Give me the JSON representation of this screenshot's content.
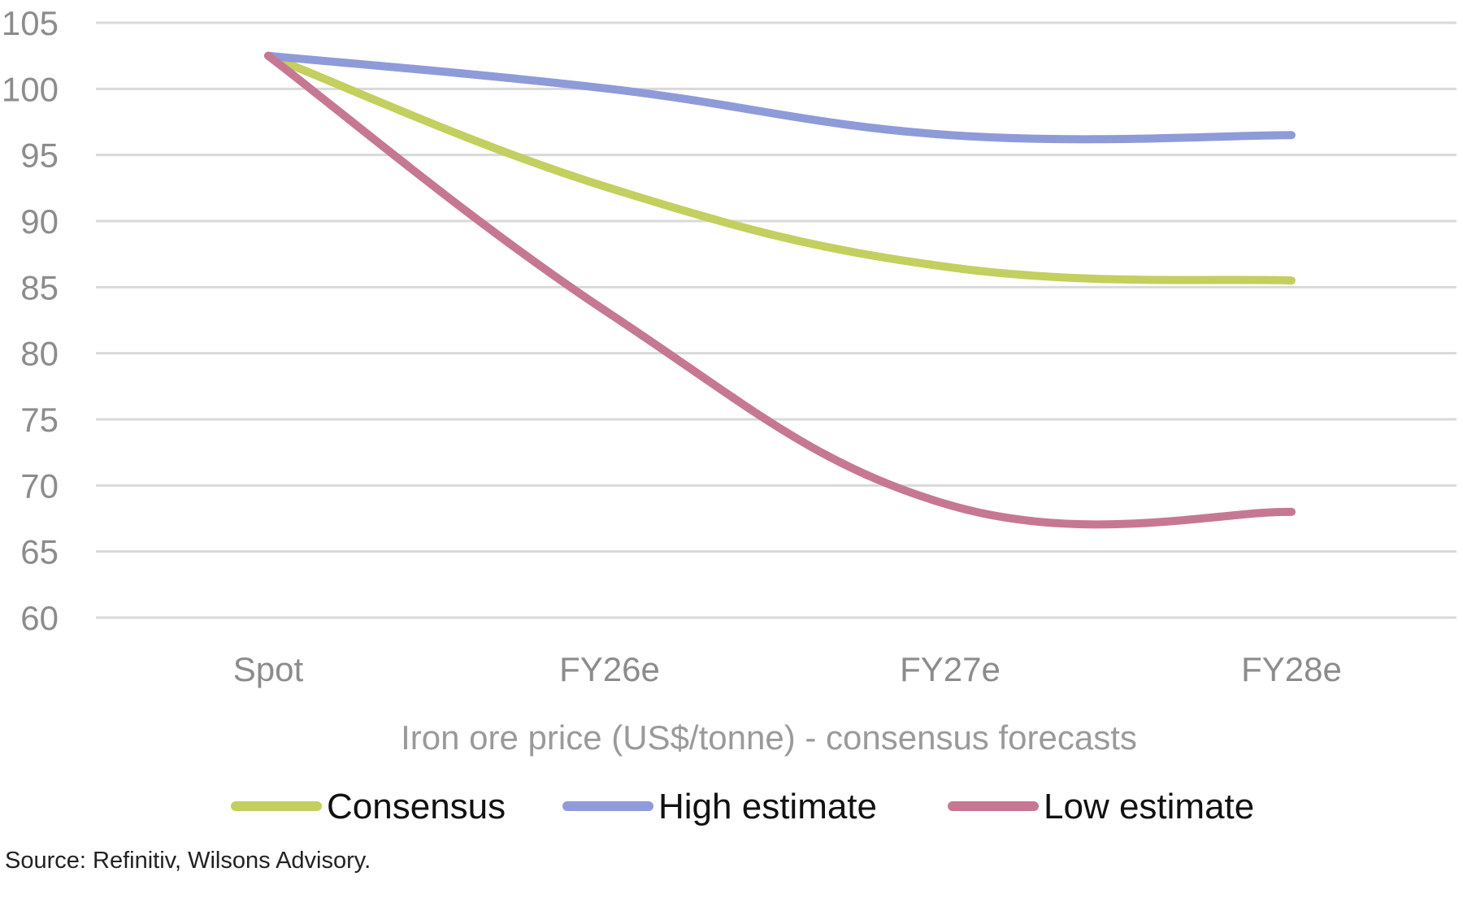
{
  "chart_data": {
    "type": "line",
    "categories": [
      "Spot",
      "FY26e",
      "FY27e",
      "FY28e"
    ],
    "xlabel": "Iron ore price (US$/tonne) - consensus forecasts",
    "ylabel": "",
    "ylim": [
      60,
      105
    ],
    "yticks": [
      60,
      65,
      70,
      75,
      80,
      85,
      90,
      95,
      100,
      105
    ],
    "grid": true,
    "legend_position": "bottom",
    "smooth": true,
    "series": [
      {
        "name": "Consensus",
        "color": "#c3cf5f",
        "values": [
          102.5,
          92.5,
          86.5,
          85.5
        ]
      },
      {
        "name": "High estimate",
        "color": "#8f9bd8",
        "values": [
          102.5,
          100.0,
          96.5,
          96.5
        ]
      },
      {
        "name": "Low estimate",
        "color": "#c67893",
        "values": [
          102.5,
          83.0,
          68.5,
          68.0
        ]
      }
    ]
  },
  "source_note": "Source: Refinitiv, Wilsons Advisory."
}
